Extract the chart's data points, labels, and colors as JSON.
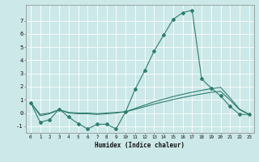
{
  "title": "",
  "xlabel": "Humidex (Indice chaleur)",
  "x_values": [
    0,
    1,
    2,
    3,
    4,
    5,
    6,
    7,
    8,
    9,
    10,
    11,
    12,
    13,
    14,
    15,
    16,
    17,
    18,
    19,
    20,
    21,
    22,
    23
  ],
  "line1_y": [
    0.8,
    -0.7,
    -0.5,
    0.3,
    -0.3,
    -0.8,
    -1.2,
    -0.85,
    -0.85,
    -1.2,
    0.1,
    1.8,
    3.2,
    4.7,
    5.9,
    7.1,
    7.6,
    7.8,
    2.6,
    1.9,
    1.3,
    0.5,
    -0.1,
    -0.1
  ],
  "line2_y": [
    0.8,
    -0.2,
    -0.05,
    0.25,
    0.0,
    -0.05,
    -0.05,
    -0.1,
    -0.05,
    0.0,
    0.1,
    0.35,
    0.6,
    0.85,
    1.05,
    1.25,
    1.42,
    1.58,
    1.72,
    1.85,
    1.95,
    1.15,
    0.3,
    -0.1
  ],
  "line3_y": [
    0.8,
    -0.1,
    0.0,
    0.25,
    0.05,
    0.0,
    0.0,
    -0.05,
    0.0,
    0.05,
    0.1,
    0.28,
    0.48,
    0.68,
    0.85,
    1.02,
    1.18,
    1.32,
    1.45,
    1.57,
    1.65,
    0.98,
    0.25,
    -0.1
  ],
  "line_color": "#2e7d6e",
  "bg_color": "#cce8e8",
  "grid_color": "#ffffff",
  "ylim": [
    -1.5,
    8.2
  ],
  "xlim": [
    -0.5,
    23.5
  ],
  "yticks": [
    -1,
    0,
    1,
    2,
    3,
    4,
    5,
    6,
    7
  ],
  "xticks": [
    0,
    1,
    2,
    3,
    4,
    5,
    6,
    7,
    8,
    9,
    10,
    11,
    12,
    13,
    14,
    15,
    16,
    17,
    18,
    19,
    20,
    21,
    22,
    23
  ]
}
